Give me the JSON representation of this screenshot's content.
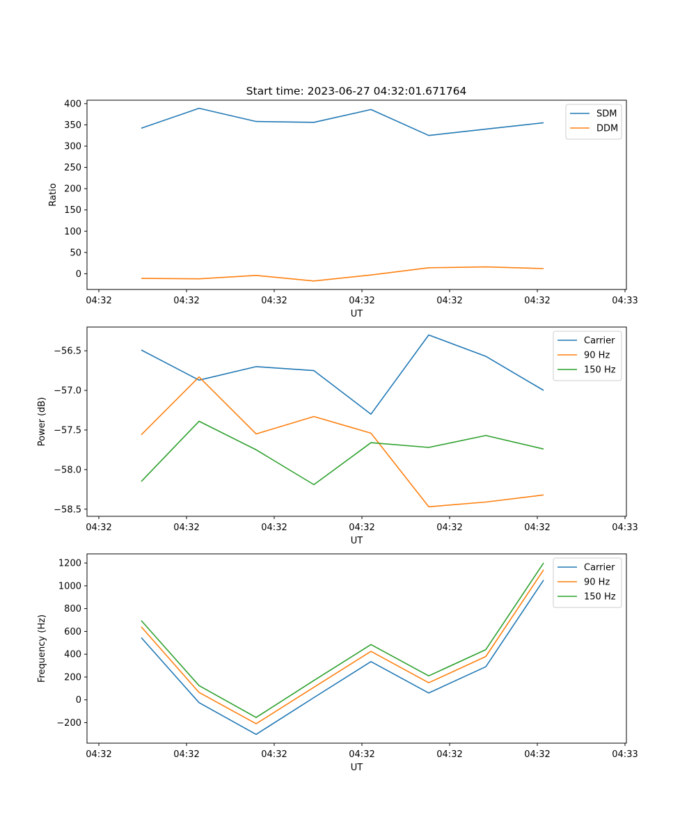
{
  "figure": {
    "title": "Start time: 2023-06-27 04:32:01.671764"
  },
  "chart_data": [
    {
      "type": "line",
      "xlabel": "UT",
      "ylabel": "Ratio",
      "xtick_labels": [
        "04:32",
        "04:32",
        "04:32",
        "04:32",
        "04:32",
        "04:32",
        "04:33"
      ],
      "yticks": [
        0,
        50,
        100,
        150,
        200,
        250,
        300,
        350,
        400
      ],
      "ylim": [
        -37,
        408
      ],
      "legend_position": "top-right",
      "series": [
        {
          "name": "SDM",
          "color": "#1f77b4",
          "values": [
            342,
            389,
            358,
            356,
            386,
            325,
            340,
            355
          ]
        },
        {
          "name": "DDM",
          "color": "#ff7f0e",
          "values": [
            -11,
            -12,
            -4,
            -17,
            -3,
            14,
            16,
            12
          ]
        }
      ]
    },
    {
      "type": "line",
      "xlabel": "UT",
      "ylabel": "Power (dB)",
      "xtick_labels": [
        "04:32",
        "04:32",
        "04:32",
        "04:32",
        "04:32",
        "04:32",
        "04:33"
      ],
      "yticks": [
        -58.5,
        -58.0,
        -57.5,
        -57.0,
        -56.5
      ],
      "ytick_labels": [
        "−58.5",
        "−58.0",
        "−57.5",
        "−57.0",
        "−56.5"
      ],
      "ylim": [
        -58.59,
        -56.2
      ],
      "legend_position": "top-right",
      "series": [
        {
          "name": "Carrier",
          "color": "#1f77b4",
          "values": [
            -56.49,
            -56.87,
            -56.7,
            -56.75,
            -57.3,
            -56.3,
            -56.57,
            -57.0
          ]
        },
        {
          "name": "90 Hz",
          "color": "#ff7f0e",
          "values": [
            -57.56,
            -56.83,
            -57.55,
            -57.33,
            -57.54,
            -58.47,
            -58.41,
            -58.32
          ]
        },
        {
          "name": "150 Hz",
          "color": "#2ca02c",
          "values": [
            -58.15,
            -57.39,
            -57.75,
            -58.19,
            -57.66,
            -57.72,
            -57.57,
            -57.74
          ]
        }
      ]
    },
    {
      "type": "line",
      "xlabel": "UT",
      "ylabel": "Frequency (Hz)",
      "xtick_labels": [
        "04:32",
        "04:32",
        "04:32",
        "04:32",
        "04:32",
        "04:32",
        "04:33"
      ],
      "yticks": [
        -200,
        0,
        200,
        400,
        600,
        800,
        1000,
        1200
      ],
      "ytick_labels": [
        "−200",
        "0",
        "200",
        "400",
        "600",
        "800",
        "1000",
        "1200"
      ],
      "ylim": [
        -380,
        1280
      ],
      "legend_position": "top-right",
      "series": [
        {
          "name": "Carrier",
          "color": "#1f77b4",
          "values": [
            545,
            -25,
            -303,
            20,
            335,
            60,
            290,
            1050
          ]
        },
        {
          "name": "90 Hz",
          "color": "#ff7f0e",
          "values": [
            640,
            65,
            -210,
            110,
            425,
            150,
            380,
            1140
          ]
        },
        {
          "name": "150 Hz",
          "color": "#2ca02c",
          "values": [
            695,
            125,
            -155,
            170,
            485,
            210,
            440,
            1200
          ]
        }
      ]
    }
  ]
}
